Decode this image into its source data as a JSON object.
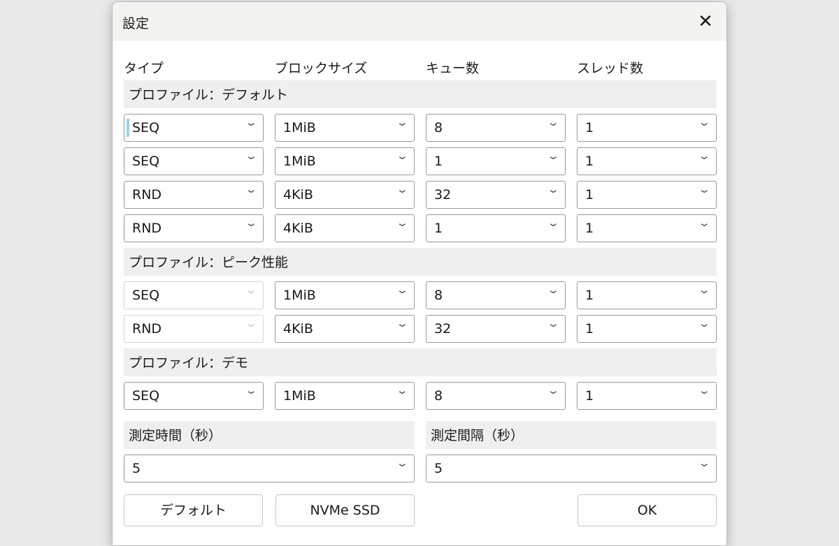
{
  "title": "設定",
  "headers": [
    "タイプ",
    "ブロックサイズ",
    "キュー数",
    "スレッド数"
  ],
  "profiles": [
    {
      "label": "プロファイル：デフォルト",
      "rows": [
        [
          "SEQ",
          "1MiB",
          "8",
          "1"
        ],
        [
          "SEQ",
          "1MiB",
          "1",
          "1"
        ],
        [
          "RND",
          "4KiB",
          "32",
          "1"
        ],
        [
          "RND",
          "4KiB",
          "1",
          "1"
        ]
      ]
    },
    {
      "label": "プロファイル：ピーク性能",
      "rows": [
        [
          "SEQ",
          "1MiB",
          "8",
          "1"
        ],
        [
          "RND",
          "4KiB",
          "32",
          "1"
        ]
      ]
    },
    {
      "label": "プロファイル：デモ",
      "rows": [
        [
          "SEQ",
          "1MiB",
          "8",
          "1"
        ]
      ]
    }
  ],
  "measure_time": {
    "label": "測定時間（秒）",
    "value": "5"
  },
  "measure_interval": {
    "label": "測定間隔（秒）",
    "value": "5"
  },
  "buttons": {
    "default": "デフォルト",
    "nvme": "NVMe SSD",
    "ok": "OK"
  }
}
